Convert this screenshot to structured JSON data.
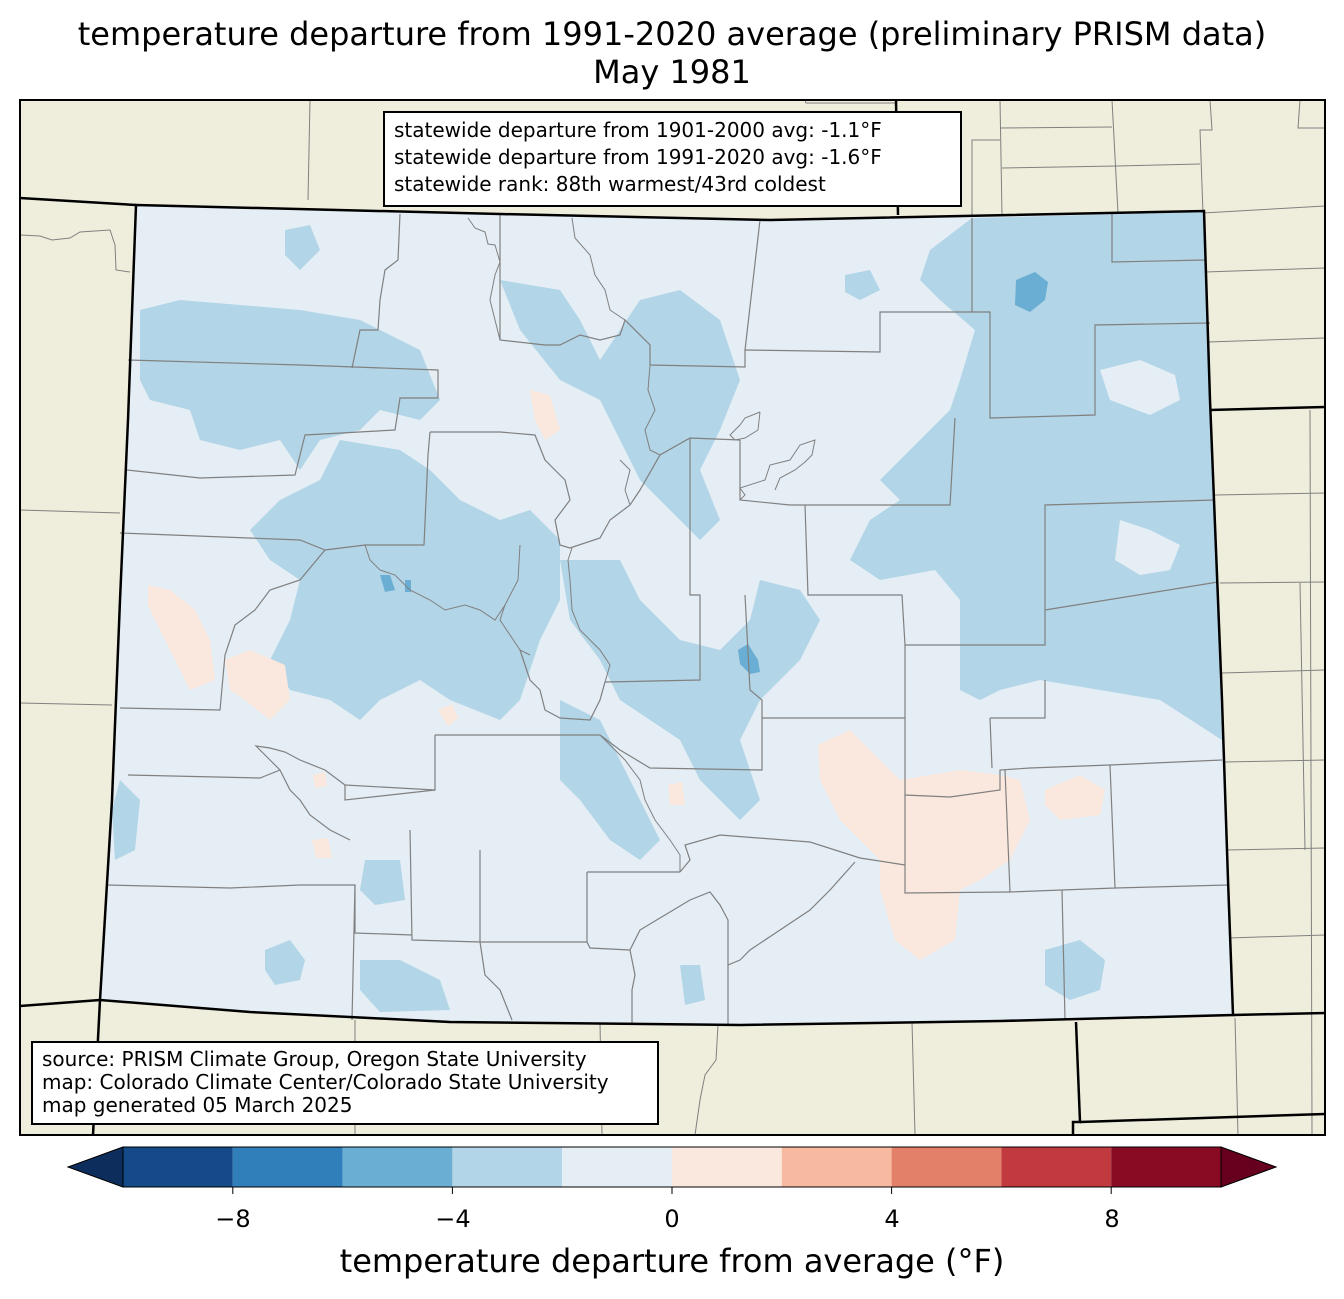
{
  "title": {
    "line1": "temperature departure from 1991-2020 average (preliminary PRISM data)",
    "line2": "May 1981"
  },
  "stats_box": {
    "line1": "statewide departure from 1901-2000 avg: -1.1°F",
    "line2": "statewide departure from 1991-2020 avg: -1.6°F",
    "line3": "statewide rank: 88th warmest/43rd coldest"
  },
  "credits_box": {
    "line1": "source: PRISM Climate Group, Oregon State University",
    "line2": "map: Colorado Climate Center/Colorado State University",
    "line3": "map generated 05 March 2025"
  },
  "colorbar": {
    "label": "temperature departure from average (°F)",
    "bins": [
      {
        "min": -10,
        "max": -8,
        "color": "#134a87"
      },
      {
        "min": -8,
        "max": -6,
        "color": "#307fba"
      },
      {
        "min": -6,
        "max": -4,
        "color": "#6aaed3"
      },
      {
        "min": -4,
        "max": -2,
        "color": "#b2d5e7"
      },
      {
        "min": -2,
        "max": 0,
        "color": "#e5eef5"
      },
      {
        "min": 0,
        "max": 2,
        "color": "#fae8de"
      },
      {
        "min": 2,
        "max": 4,
        "color": "#f7baa0"
      },
      {
        "min": 4,
        "max": 6,
        "color": "#e3806a"
      },
      {
        "min": 6,
        "max": 8,
        "color": "#c13a3f"
      },
      {
        "min": 8,
        "max": 10,
        "color": "#880b23"
      }
    ],
    "under_color": "#0d2e5c",
    "over_color": "#67001f",
    "ticks": [
      "−8",
      "−4",
      "0",
      "4",
      "8"
    ]
  },
  "map_colors": {
    "land_outside": "#efeddc",
    "state_border": "#000000",
    "county_border": "#808080",
    "main_fill": "#e5eef5",
    "cool_fill": "#b2d5e7",
    "cold_fill": "#6aaed3",
    "warm_fill": "#fae8de"
  }
}
